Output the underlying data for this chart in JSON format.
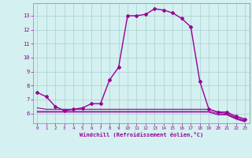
{
  "xlabel": "Windchill (Refroidissement éolien,°C)",
  "hours": [
    0,
    1,
    2,
    3,
    4,
    5,
    6,
    7,
    8,
    9,
    10,
    11,
    12,
    13,
    14,
    15,
    16,
    17,
    18,
    19,
    20,
    21,
    22,
    23
  ],
  "temp": [
    7.5,
    7.2,
    6.5,
    6.2,
    6.3,
    6.4,
    6.7,
    6.7,
    8.4,
    9.3,
    13.0,
    13.0,
    13.1,
    13.5,
    13.4,
    13.2,
    12.8,
    12.2,
    8.3,
    6.3,
    6.1,
    6.1,
    5.8,
    5.6
  ],
  "flat_a": [
    6.4,
    6.3,
    6.3,
    6.3,
    6.3,
    6.3,
    6.3,
    6.3,
    6.3,
    6.3,
    6.3,
    6.3,
    6.3,
    6.3,
    6.3,
    6.3,
    6.3,
    6.3,
    6.3,
    6.3,
    6.1,
    6.0,
    5.7,
    5.5
  ],
  "flat_b": [
    6.1,
    6.1,
    6.1,
    6.1,
    6.1,
    6.1,
    6.1,
    6.1,
    6.1,
    6.1,
    6.1,
    6.1,
    6.1,
    6.1,
    6.1,
    6.1,
    6.1,
    6.1,
    6.1,
    6.1,
    5.9,
    5.9,
    5.6,
    5.4
  ],
  "flat_c": [
    6.15,
    6.15,
    6.15,
    6.15,
    6.15,
    6.15,
    6.15,
    6.15,
    6.15,
    6.15,
    6.15,
    6.15,
    6.15,
    6.15,
    6.15,
    6.15,
    6.15,
    6.15,
    6.15,
    6.15,
    6.0,
    5.95,
    5.65,
    5.45
  ],
  "line_color": "#990099",
  "bg_color": "#d4f0f0",
  "grid_color": "#aacfcf",
  "ylim": [
    5.3,
    13.9
  ],
  "xlim": [
    -0.5,
    23.5
  ],
  "yticks": [
    6,
    7,
    8,
    9,
    10,
    11,
    12,
    13
  ],
  "xticks": [
    0,
    1,
    2,
    3,
    4,
    5,
    6,
    7,
    8,
    9,
    10,
    11,
    12,
    13,
    14,
    15,
    16,
    17,
    18,
    19,
    20,
    21,
    22,
    23
  ]
}
